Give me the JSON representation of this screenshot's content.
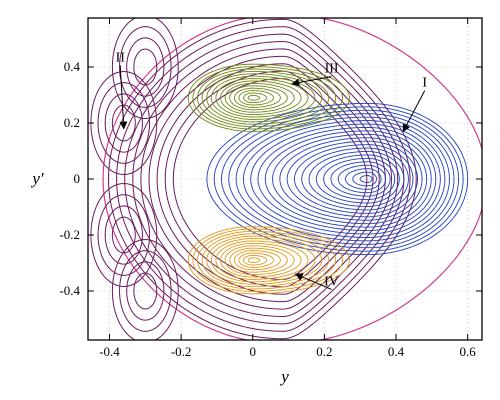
{
  "chart_data": {
    "type": "line",
    "title": "",
    "xlabel": "y",
    "ylabel": "y′",
    "xlim": [
      -0.46,
      0.64
    ],
    "ylim": [
      -0.575,
      0.575
    ],
    "xticks": [
      "-0.4",
      "-0.2",
      "0",
      "0.2",
      "0.4",
      "0.6"
    ],
    "xtick_values": [
      -0.4,
      -0.2,
      0,
      0.2,
      0.4,
      0.6
    ],
    "yticks": [
      "0.4",
      "0.2",
      "0",
      "-0.2",
      "-0.4"
    ],
    "ytick_values": [
      0.4,
      0.2,
      0,
      -0.2,
      -0.4
    ],
    "grid": true,
    "colors": {
      "separatrix": "#d33c8c",
      "region_I": "#1f3fc4",
      "region_II": "#6a1b5e",
      "region_III": "#6f8a12",
      "region_IV": "#e39a17"
    },
    "series": [
      {
        "region": "I",
        "center": [
          0.32,
          0.0
        ],
        "semi_axes_outer": [
          0.28,
          0.27
        ],
        "levels": 22
      },
      {
        "region": "II",
        "outer_boundary_x": [
          -0.45,
          0.62
        ],
        "outer_boundary_y": [
          -0.56,
          0.56
        ],
        "levels": 9
      },
      {
        "region": "III",
        "center": [
          0.0,
          0.29
        ],
        "semi_axes_outer": [
          0.18,
          0.12
        ],
        "levels": 14
      },
      {
        "region": "IV",
        "center": [
          0.0,
          -0.29
        ],
        "semi_axes_outer": [
          0.18,
          0.12
        ],
        "levels": 14
      }
    ],
    "annotations": [
      {
        "text": "I",
        "text_at": [
          0.48,
          0.33
        ],
        "arrow_to": [
          0.42,
          0.17
        ]
      },
      {
        "text": "II",
        "text_at": [
          -0.37,
          0.42
        ],
        "arrow_to": [
          -0.36,
          0.18
        ]
      },
      {
        "text": "III",
        "text_at": [
          0.22,
          0.38
        ],
        "arrow_to": [
          0.11,
          0.34
        ]
      },
      {
        "text": "IV",
        "text_at": [
          0.22,
          -0.38
        ],
        "arrow_to": [
          0.12,
          -0.34
        ]
      }
    ]
  }
}
